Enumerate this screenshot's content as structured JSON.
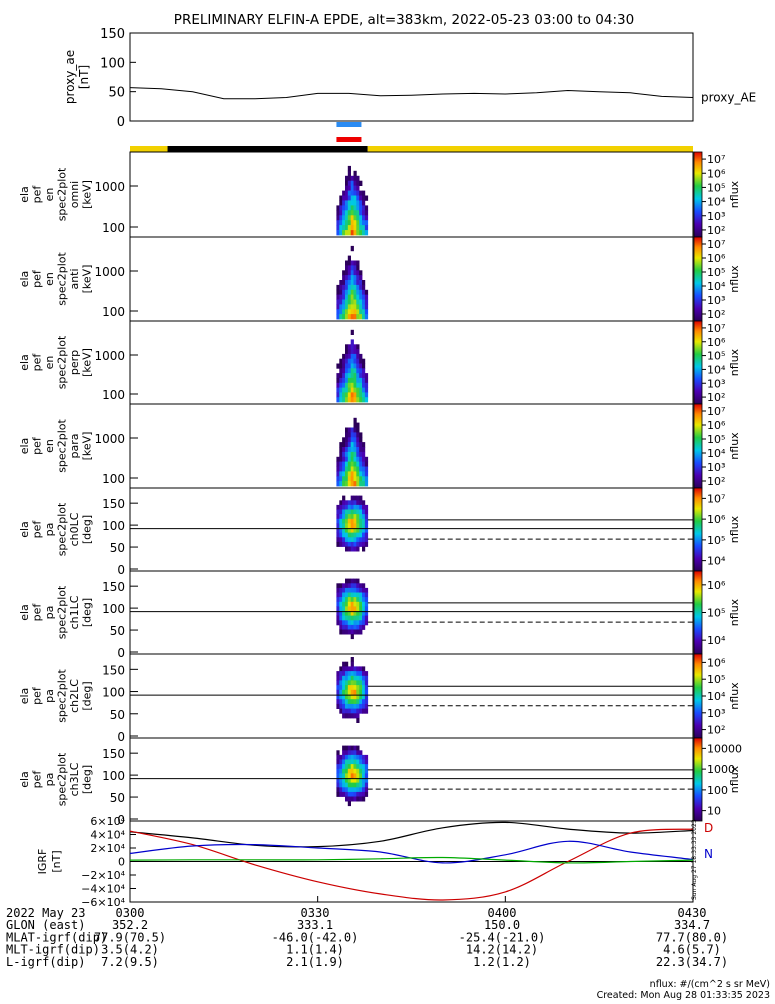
{
  "title": "PRELIMINARY ELFIN-A EPDE, alt=383km, 2022-05-23 03:00 to 04:30",
  "chart_data": {
    "type": "line",
    "title": "PRELIMINARY ELFIN-A EPDE, alt=383km, 2022-05-23 03:00 to 04:30",
    "x_time_start": "03:00",
    "x_time_end": "04:30",
    "proxy_ae": {
      "ylabel": "proxy_ae [nT]",
      "legend": "proxy_AE",
      "ylim": [
        0,
        150
      ],
      "yticks": [
        0,
        50,
        100,
        150
      ],
      "x": [
        "03:00",
        "03:05",
        "03:10",
        "03:15",
        "03:20",
        "03:25",
        "03:30",
        "03:35",
        "03:40",
        "03:45",
        "03:50",
        "03:55",
        "04:00",
        "04:05",
        "04:10",
        "04:15",
        "04:20",
        "04:25",
        "04:30"
      ],
      "values": [
        57,
        55,
        50,
        38,
        38,
        40,
        47,
        47,
        43,
        44,
        46,
        47,
        46,
        48,
        52,
        50,
        48,
        42,
        40
      ]
    },
    "science_zone_bars": {
      "blue": [
        "03:33",
        "03:37"
      ],
      "red": [
        "03:33",
        "03:37"
      ]
    },
    "status_bar": {
      "colors": [
        "#f2d100",
        "#000000",
        "#f2d100"
      ],
      "segments": [
        [
          "03:00",
          "03:06"
        ],
        [
          "03:06",
          "03:38"
        ],
        [
          "03:38",
          "04:30"
        ]
      ]
    },
    "energy_panels": [
      {
        "name": "ela pef en spec2plot omni",
        "ylabel_lines": [
          "ela",
          "pef",
          "en",
          "spec2plot",
          "omni",
          "[keV]"
        ],
        "ytick_labels": [
          "100",
          "1000"
        ],
        "zlabel": "nflux",
        "zticks": [
          "10²",
          "10³",
          "10⁴",
          "10⁵",
          "10⁶",
          "10⁷"
        ]
      },
      {
        "name": "ela pef en spec2plot anti",
        "ylabel_lines": [
          "ela",
          "pef",
          "en",
          "spec2plot",
          "anti",
          "[keV]"
        ],
        "ytick_labels": [
          "100",
          "1000"
        ],
        "zlabel": "nflux",
        "zticks": [
          "10²",
          "10³",
          "10⁴",
          "10⁵",
          "10⁶",
          "10⁷"
        ]
      },
      {
        "name": "ela pef en spec2plot perp",
        "ylabel_lines": [
          "ela",
          "pef",
          "en",
          "spec2plot",
          "perp",
          "[keV]"
        ],
        "ytick_labels": [
          "100",
          "1000"
        ],
        "zlabel": "nflux",
        "zticks": [
          "10²",
          "10³",
          "10⁴",
          "10⁵",
          "10⁶",
          "10⁷"
        ]
      },
      {
        "name": "ela pef en spec2plot para",
        "ylabel_lines": [
          "ela",
          "pef",
          "en",
          "spec2plot",
          "para",
          "[keV]"
        ],
        "ytick_labels": [
          "100",
          "1000"
        ],
        "zlabel": "nflux",
        "zticks": [
          "10²",
          "10³",
          "10⁴",
          "10⁵",
          "10⁶",
          "10⁷"
        ]
      }
    ],
    "pitch_panels": [
      {
        "name": "ela pef pa spec2plot ch0LC",
        "ylabel_lines": [
          "ela",
          "pef",
          "pa",
          "spec2plot",
          "ch0LC",
          "[deg]"
        ],
        "ytick_labels": [
          "0",
          "50",
          "100",
          "150"
        ],
        "zlabel": "nflux",
        "zticks": [
          "10⁴",
          "10⁵",
          "10⁶",
          "10⁷"
        ]
      },
      {
        "name": "ela pef pa spec2plot ch1LC",
        "ylabel_lines": [
          "ela",
          "pef",
          "pa",
          "spec2plot",
          "ch1LC",
          "[deg]"
        ],
        "ytick_labels": [
          "0",
          "50",
          "100",
          "150"
        ],
        "zlabel": "nflux",
        "zticks": [
          "10⁴",
          "10⁵",
          "10⁶"
        ]
      },
      {
        "name": "ela pef pa spec2plot ch2LC",
        "ylabel_lines": [
          "ela",
          "pef",
          "pa",
          "spec2plot",
          "ch2LC",
          "[deg]"
        ],
        "ytick_labels": [
          "0",
          "50",
          "100",
          "150"
        ],
        "zlabel": "nflux",
        "zticks": [
          "10²",
          "10³",
          "10⁴",
          "10⁵",
          "10⁶"
        ]
      },
      {
        "name": "ela pef pa spec2plot ch3LC",
        "ylabel_lines": [
          "ela",
          "pef",
          "pa",
          "spec2plot",
          "ch3LC",
          "[deg]"
        ],
        "ytick_labels": [
          "0",
          "50",
          "100",
          "150"
        ],
        "zlabel": "nflux",
        "zticks": [
          "10",
          "100",
          "1000",
          "10000"
        ]
      }
    ],
    "igrf": {
      "ylabel": "IGRF [nT]",
      "ytick_labels": [
        "6×10⁴",
        "4×10⁴",
        "2×10⁴",
        "0",
        "−2×10⁴",
        "−4×10⁴",
        "−6×10⁴"
      ],
      "ylim": [
        -60000,
        60000
      ],
      "legend": [
        "D",
        "N"
      ],
      "x": [
        "03:00",
        "03:10",
        "03:20",
        "03:30",
        "03:40",
        "03:50",
        "04:00",
        "04:10",
        "04:20",
        "04:30"
      ],
      "series": [
        {
          "color": "#000000",
          "values": [
            44000,
            35000,
            24000,
            22000,
            30000,
            50000,
            58000,
            48000,
            42000,
            46000
          ]
        },
        {
          "color": "#cc0000",
          "values": [
            45000,
            25000,
            -5000,
            -30000,
            -48000,
            -57000,
            -45000,
            0,
            42000,
            48000
          ]
        },
        {
          "color": "#0000cc",
          "values": [
            12000,
            23000,
            25000,
            20000,
            14000,
            -2000,
            10000,
            30000,
            14000,
            3000
          ]
        },
        {
          "color": "#00aa00",
          "values": [
            2000,
            2500,
            2500,
            2500,
            4000,
            6000,
            2000,
            -2000,
            0,
            2000
          ]
        }
      ]
    },
    "footer": {
      "rows": [
        {
          "label": "2022 May 23",
          "values": [
            "0300",
            "0330",
            "0400",
            "0430"
          ]
        },
        {
          "label": "GLON (east)",
          "values": [
            "352.2",
            "333.1",
            "150.0",
            "334.7"
          ]
        },
        {
          "label": "MLAT-igrf(dip)",
          "values": [
            "77.9(70.5)",
            "-46.0(-42.0)",
            "-25.4(-21.0)",
            "77.7(80.0)"
          ]
        },
        {
          "label": "MLT-igrf(dip)",
          "values": [
            "3.5(4.2)",
            "1.1(1.4)",
            "14.2(14.2)",
            "4.6(5.7)"
          ]
        },
        {
          "label": "L-igrf(dip)",
          "values": [
            "7.2(9.5)",
            "2.1(1.9)",
            "1.2(1.2)",
            "22.3(34.7)"
          ]
        }
      ],
      "units_note": "nflux: #/(cm^2 s sr MeV)",
      "created": "Created: Mon Aug 28 01:33:35 2023",
      "side_stamp": "Sun Aug 27 18:33:33 2023"
    }
  }
}
